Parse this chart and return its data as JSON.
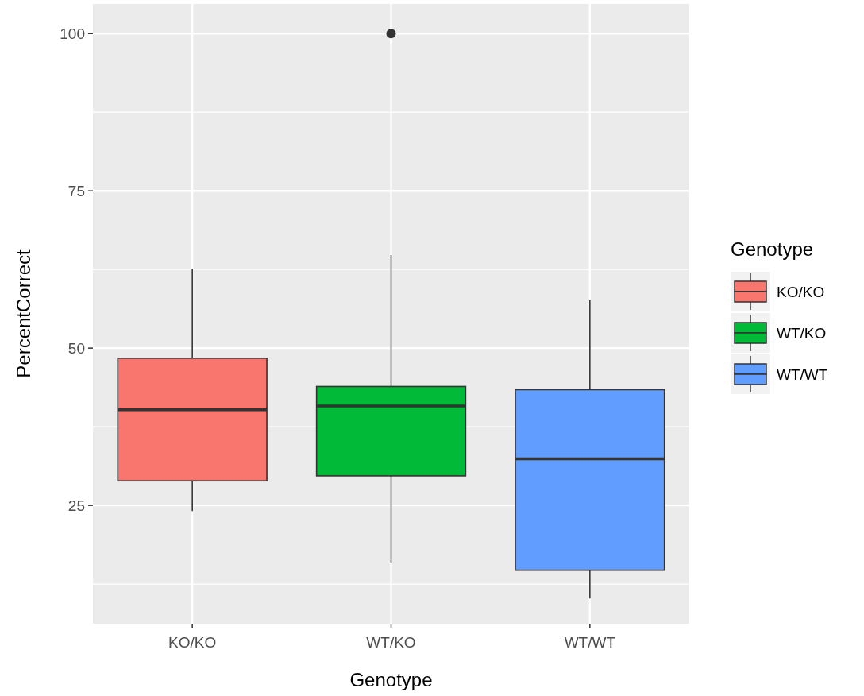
{
  "chart_data": {
    "type": "box",
    "xlabel": "Genotype",
    "ylabel": "PercentCorrect",
    "legend_title": "Genotype",
    "legend": "right",
    "grid": true,
    "categories": [
      "KO/KO",
      "WT/KO",
      "WT/WT"
    ],
    "series": [
      {
        "name": "KO/KO",
        "color": "#f8766d",
        "boxes": [
          {
            "low": 24.1,
            "q1": 28.9,
            "median": 40.2,
            "q3": 48.4,
            "high": 62.6
          },
          null,
          null
        ]
      },
      {
        "name": "WT/KO",
        "color": "#00ba38",
        "boxes": [
          null,
          {
            "low": 15.8,
            "q1": 29.7,
            "median": 40.8,
            "q3": 43.9,
            "high": 64.8,
            "outliers": [
              100
            ]
          },
          null
        ]
      },
      {
        "name": "WT/WT",
        "color": "#619cff",
        "boxes": [
          null,
          null,
          {
            "low": 10.2,
            "q1": 14.7,
            "median": 32.4,
            "q3": 43.4,
            "high": 57.6
          }
        ]
      }
    ],
    "ylim": [
      6.2,
      104.7
    ],
    "yticks": [
      25,
      50,
      75,
      100
    ]
  }
}
